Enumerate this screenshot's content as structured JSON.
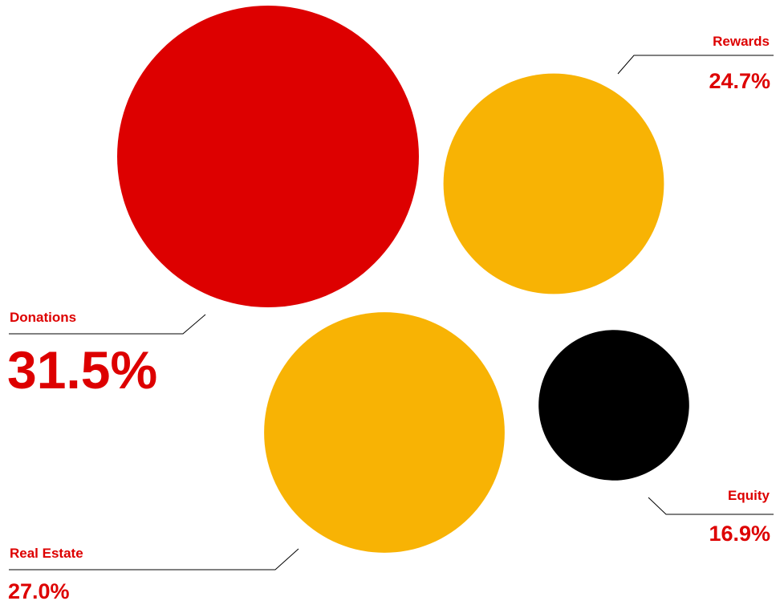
{
  "chart_data": {
    "type": "bubble",
    "title": "",
    "series": [
      {
        "label": "Donations",
        "value": 31.5,
        "display": "31.5%",
        "color": "#dd0000"
      },
      {
        "label": "Rewards",
        "value": 24.7,
        "display": "24.7%",
        "color": "#f8b304"
      },
      {
        "label": "Real Estate",
        "value": 27.0,
        "display": "27.0%",
        "color": "#f8b304"
      },
      {
        "label": "Equity",
        "value": 16.9,
        "display": "16.9%",
        "color": "#000000"
      }
    ]
  },
  "colors": {
    "label_name": "#dd0000",
    "label_value": "#dd0000",
    "leader_line": "#000000"
  }
}
